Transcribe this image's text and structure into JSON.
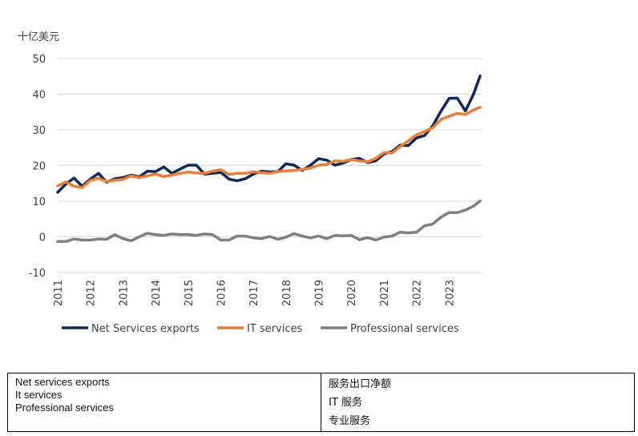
{
  "chart_data": {
    "type": "line",
    "ylabel": "十亿美元",
    "ylim": [
      -10,
      50
    ],
    "yticks": [
      -10,
      0,
      10,
      20,
      30,
      40,
      50
    ],
    "xlim": [
      2011,
      2024
    ],
    "xticks": [
      "2011",
      "2012",
      "2013",
      "2014",
      "2015",
      "2016",
      "2017",
      "2018",
      "2019",
      "2020",
      "2021",
      "2022",
      "2023"
    ],
    "grid": "horizontal",
    "legend_position": "bottom",
    "series": [
      {
        "name": "Net Services exports",
        "color": "#0e2a5c",
        "x": [
          2011.0,
          2011.25,
          2011.5,
          2011.75,
          2012.0,
          2012.25,
          2012.5,
          2012.75,
          2013.0,
          2013.25,
          2013.5,
          2013.75,
          2014.0,
          2014.25,
          2014.5,
          2014.75,
          2015.0,
          2015.25,
          2015.5,
          2015.75,
          2016.0,
          2016.25,
          2016.5,
          2016.75,
          2017.0,
          2017.25,
          2017.5,
          2017.75,
          2018.0,
          2018.25,
          2018.5,
          2018.75,
          2019.0,
          2019.25,
          2019.5,
          2019.75,
          2020.0,
          2020.25,
          2020.5,
          2020.75,
          2021.0,
          2021.25,
          2021.5,
          2021.75,
          2022.0,
          2022.25,
          2022.5,
          2022.75,
          2023.0,
          2023.25,
          2023.5,
          2023.75,
          2023.95
        ],
        "values": [
          12.5,
          14.8,
          16.5,
          14.2,
          16.2,
          17.8,
          15.3,
          16.3,
          16.6,
          17.3,
          16.8,
          18.4,
          18.3,
          19.6,
          17.8,
          19.0,
          20.1,
          20.1,
          17.6,
          17.8,
          18.1,
          16.2,
          15.7,
          16.3,
          17.6,
          18.4,
          18.2,
          18.3,
          20.5,
          20.1,
          18.6,
          20.1,
          21.9,
          21.5,
          20.1,
          20.7,
          21.7,
          22.0,
          20.8,
          21.3,
          23.2,
          23.9,
          25.7,
          25.6,
          27.7,
          28.4,
          31.2,
          35.2,
          38.8,
          38.9,
          35.3,
          40.0,
          45.1
        ]
      },
      {
        "name": "IT services",
        "color": "#ed7d31",
        "x": [
          2011.0,
          2011.25,
          2011.5,
          2011.75,
          2012.0,
          2012.25,
          2012.5,
          2012.75,
          2013.0,
          2013.25,
          2013.5,
          2013.75,
          2014.0,
          2014.25,
          2014.5,
          2014.75,
          2015.0,
          2015.25,
          2015.5,
          2015.75,
          2016.0,
          2016.25,
          2016.5,
          2016.75,
          2017.0,
          2017.25,
          2017.5,
          2017.75,
          2018.0,
          2018.25,
          2018.5,
          2018.75,
          2019.0,
          2019.25,
          2019.5,
          2019.75,
          2020.0,
          2020.25,
          2020.5,
          2020.75,
          2021.0,
          2021.25,
          2021.5,
          2021.75,
          2022.0,
          2022.25,
          2022.5,
          2022.75,
          2023.0,
          2023.25,
          2023.5,
          2023.75,
          2023.95
        ],
        "values": [
          14.3,
          15.4,
          14.2,
          13.8,
          15.8,
          16.4,
          15.5,
          15.9,
          16.1,
          17.1,
          16.6,
          17.1,
          17.6,
          16.9,
          17.3,
          17.8,
          18.2,
          17.9,
          17.8,
          18.4,
          18.8,
          17.5,
          17.8,
          17.8,
          18.2,
          18.0,
          17.8,
          18.3,
          18.5,
          18.6,
          18.9,
          19.3,
          20.1,
          20.3,
          21.3,
          21.2,
          21.7,
          21.3,
          21.0,
          22.0,
          23.6,
          23.5,
          25.3,
          26.9,
          28.6,
          29.5,
          30.6,
          32.9,
          33.8,
          34.6,
          34.3,
          35.6,
          36.3
        ]
      },
      {
        "name": "Professional services",
        "color": "#7f7f7f",
        "x": [
          2011.0,
          2011.25,
          2011.5,
          2011.75,
          2012.0,
          2012.25,
          2012.5,
          2012.75,
          2013.0,
          2013.25,
          2013.5,
          2013.75,
          2014.0,
          2014.25,
          2014.5,
          2014.75,
          2015.0,
          2015.25,
          2015.5,
          2015.75,
          2016.0,
          2016.25,
          2016.5,
          2016.75,
          2017.0,
          2017.25,
          2017.5,
          2017.75,
          2018.0,
          2018.25,
          2018.5,
          2018.75,
          2019.0,
          2019.25,
          2019.5,
          2019.75,
          2020.0,
          2020.25,
          2020.5,
          2020.75,
          2021.0,
          2021.25,
          2021.5,
          2021.75,
          2022.0,
          2022.25,
          2022.5,
          2022.75,
          2023.0,
          2023.25,
          2023.5,
          2023.75,
          2023.95
        ],
        "values": [
          -1.3,
          -1.3,
          -0.6,
          -0.9,
          -0.9,
          -0.6,
          -0.7,
          0.6,
          -0.5,
          -1.1,
          0.0,
          1.0,
          0.6,
          0.4,
          0.8,
          0.6,
          0.6,
          0.4,
          0.8,
          0.6,
          -0.9,
          -0.9,
          0.2,
          0.2,
          -0.3,
          -0.5,
          0.1,
          -0.7,
          -0.1,
          0.9,
          0.2,
          -0.3,
          0.2,
          -0.5,
          0.4,
          0.3,
          0.4,
          -0.8,
          -0.2,
          -0.9,
          -0.1,
          0.2,
          1.3,
          1.1,
          1.3,
          3.1,
          3.6,
          5.5,
          6.8,
          6.8,
          7.5,
          8.6,
          10.1
        ]
      }
    ]
  },
  "translation_table": {
    "english": [
      "Net services exports",
      "It services",
      "Professional services"
    ],
    "chinese": [
      "服务出口净额",
      "IT 服务",
      "专业服务"
    ]
  }
}
